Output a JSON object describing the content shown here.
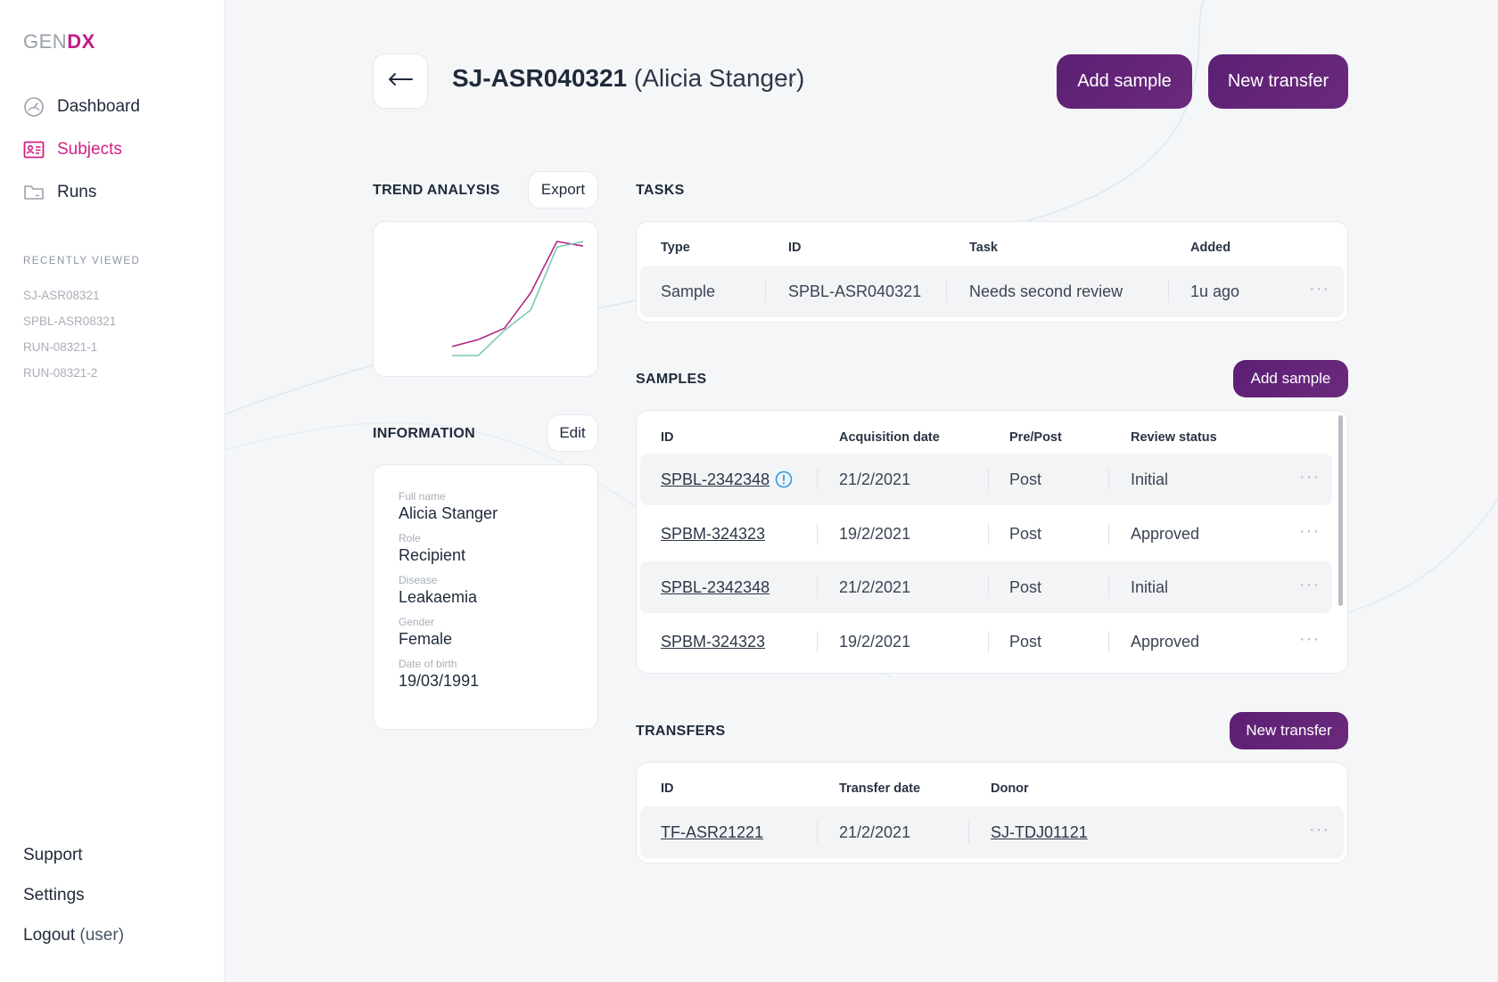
{
  "app": {
    "logo_gen": "GEN",
    "logo_dx": "DX"
  },
  "sidebar": {
    "nav": [
      {
        "label": "Dashboard",
        "icon": "gauge-icon"
      },
      {
        "label": "Subjects",
        "icon": "id-card-icon",
        "active": true
      },
      {
        "label": "Runs",
        "icon": "folder-icon"
      }
    ],
    "recent_title": "RECENTLY VIEWED",
    "recent": [
      "SJ-ASR08321",
      "SPBL-ASR08321",
      "RUN-08321-1",
      "RUN-08321-2"
    ],
    "support": "Support",
    "settings": "Settings",
    "logout": "Logout",
    "logout_user": "(user)"
  },
  "header": {
    "subject_id": "SJ-ASR040321",
    "subject_name": "(Alicia Stanger)",
    "more": "···",
    "add_sample": "Add sample",
    "new_transfer": "New transfer"
  },
  "trend": {
    "title": "TREND ANALYSIS",
    "export": "Export",
    "colors": {
      "series_a": "#b0268a",
      "series_b": "#7fc6b5"
    },
    "chart_data": {
      "type": "line",
      "title": "",
      "xlabel": "",
      "ylabel": "",
      "grid": false,
      "series": [
        {
          "values": [
            0.08,
            0.14,
            0.24,
            0.55,
            1.0,
            0.96
          ]
        },
        {
          "values": [
            0.0,
            0.0,
            0.22,
            0.4,
            0.95,
            1.0
          ]
        }
      ]
    }
  },
  "information": {
    "title": "INFORMATION",
    "edit": "Edit",
    "fields": [
      {
        "label": "Full name",
        "value": "Alicia Stanger"
      },
      {
        "label": "Role",
        "value": "Recipient"
      },
      {
        "label": "Disease",
        "value": "Leakaemia"
      },
      {
        "label": "Gender",
        "value": "Female"
      },
      {
        "label": "Date of birth",
        "value": "19/03/1991"
      }
    ]
  },
  "tasks": {
    "title": "TASKS",
    "columns": [
      "Type",
      "ID",
      "Task",
      "Added"
    ],
    "rows": [
      {
        "type": "Sample",
        "id": "SPBL-ASR040321",
        "task": "Needs second review",
        "added": "1u ago"
      }
    ]
  },
  "samples": {
    "title": "SAMPLES",
    "add": "Add sample",
    "columns": [
      "ID",
      "Acquisition date",
      "Pre/Post",
      "Review status"
    ],
    "rows": [
      {
        "id": "SPBL-2342348",
        "date": "21/2/2021",
        "prepost": "Post",
        "status": "Initial",
        "warning": true
      },
      {
        "id": "SPBM-324323",
        "date": "19/2/2021",
        "prepost": "Post",
        "status": "Approved"
      },
      {
        "id": "SPBL-2342348",
        "date": "21/2/2021",
        "prepost": "Post",
        "status": "Initial"
      },
      {
        "id": "SPBM-324323",
        "date": "19/2/2021",
        "prepost": "Post",
        "status": "Approved"
      }
    ]
  },
  "transfers": {
    "title": "TRANSFERS",
    "add": "New transfer",
    "columns": [
      "ID",
      "Transfer date",
      "Donor"
    ],
    "rows": [
      {
        "id": "TF-ASR21221",
        "date": "21/2/2021",
        "donor": "SJ-TDJ01121"
      }
    ]
  }
}
